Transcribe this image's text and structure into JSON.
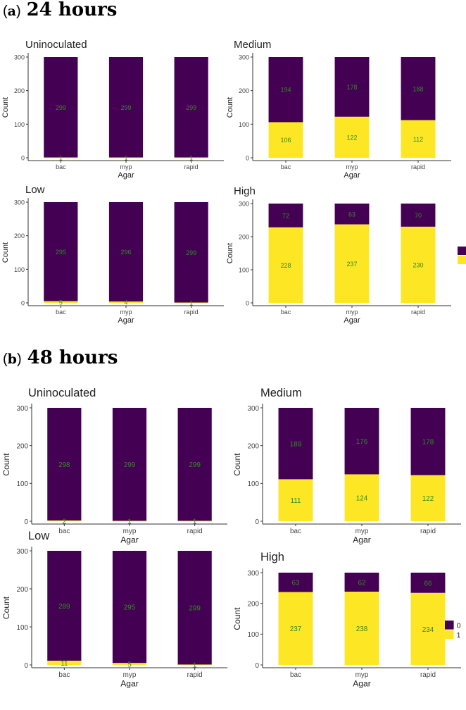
{
  "sections": [
    {
      "bracket_open": "(",
      "letter": "a",
      "bracket_close": ")",
      "title": "24 hours"
    },
    {
      "bracket_open": "(",
      "letter": "b",
      "bracket_close": ")",
      "title": "48 hours"
    }
  ],
  "legend": {
    "entries": [
      {
        "label": "0",
        "color": "#440154"
      },
      {
        "label": "1",
        "color": "#FDE725"
      }
    ]
  },
  "colors": {
    "zero": "#440154",
    "one": "#FDE725",
    "label": "#2E8B1E",
    "axis": "#333333"
  },
  "chart_data": [
    {
      "type": "bar",
      "section": "24 hours",
      "title": "Uninoculated",
      "xlabel": "Agar",
      "ylabel": "Count",
      "categories": [
        "bac",
        "myp",
        "rapid"
      ],
      "ylim": [
        0,
        300
      ],
      "yticks": [
        0,
        100,
        200,
        300
      ],
      "series": [
        {
          "name": "1",
          "values": [
            1,
            1,
            1
          ],
          "labels": [
            "1",
            "1",
            "1"
          ]
        },
        {
          "name": "0",
          "values": [
            299,
            299,
            299
          ],
          "labels": [
            "299",
            "299",
            "299"
          ]
        }
      ]
    },
    {
      "type": "bar",
      "section": "24 hours",
      "title": "Medium",
      "xlabel": "Agar",
      "ylabel": "Count",
      "categories": [
        "bac",
        "myp",
        "rapid"
      ],
      "ylim": [
        0,
        300
      ],
      "yticks": [
        0,
        100,
        200,
        300
      ],
      "series": [
        {
          "name": "1",
          "values": [
            106,
            122,
            112
          ],
          "labels": [
            "106",
            "122",
            "112"
          ]
        },
        {
          "name": "0",
          "values": [
            194,
            178,
            188
          ],
          "labels": [
            "194",
            "178",
            "188"
          ]
        }
      ]
    },
    {
      "type": "bar",
      "section": "24 hours",
      "title": "Low",
      "xlabel": "Agar",
      "ylabel": "Count",
      "categories": [
        "bac",
        "myp",
        "rapid"
      ],
      "ylim": [
        0,
        300
      ],
      "yticks": [
        0,
        100,
        200,
        300
      ],
      "series": [
        {
          "name": "1",
          "values": [
            5,
            4,
            1
          ],
          "labels": [
            "5",
            "4",
            "1"
          ]
        },
        {
          "name": "0",
          "values": [
            295,
            296,
            299
          ],
          "labels": [
            "295",
            "296",
            "299"
          ]
        }
      ]
    },
    {
      "type": "bar",
      "section": "24 hours",
      "title": "High",
      "xlabel": "Agar",
      "ylabel": "Count",
      "categories": [
        "bac",
        "myp",
        "rapid"
      ],
      "ylim": [
        0,
        300
      ],
      "yticks": [
        0,
        100,
        200,
        300
      ],
      "series": [
        {
          "name": "1",
          "values": [
            228,
            237,
            230
          ],
          "labels": [
            "228",
            "237",
            "230"
          ]
        },
        {
          "name": "0",
          "values": [
            72,
            63,
            70
          ],
          "labels": [
            "72",
            "63",
            "70"
          ]
        }
      ]
    },
    {
      "type": "bar",
      "section": "48 hours",
      "title": "Uninoculated",
      "xlabel": "Agar",
      "ylabel": "Count",
      "categories": [
        "bac",
        "myp",
        "rapid"
      ],
      "ylim": [
        0,
        300
      ],
      "yticks": [
        0,
        100,
        200,
        300
      ],
      "series": [
        {
          "name": "1",
          "values": [
            2,
            1,
            1
          ],
          "labels": [
            "2",
            "1",
            "1"
          ]
        },
        {
          "name": "0",
          "values": [
            298,
            299,
            299
          ],
          "labels": [
            "298",
            "299",
            "299"
          ]
        }
      ]
    },
    {
      "type": "bar",
      "section": "48 hours",
      "title": "Medium",
      "xlabel": "Agar",
      "ylabel": "Count",
      "categories": [
        "bac",
        "myp",
        "rapid"
      ],
      "ylim": [
        0,
        300
      ],
      "yticks": [
        0,
        100,
        200,
        300
      ],
      "series": [
        {
          "name": "1",
          "values": [
            111,
            124,
            122
          ],
          "labels": [
            "111",
            "124",
            "122"
          ]
        },
        {
          "name": "0",
          "values": [
            189,
            176,
            178
          ],
          "labels": [
            "189",
            "176",
            "178"
          ]
        }
      ]
    },
    {
      "type": "bar",
      "section": "48 hours",
      "title": "Low",
      "xlabel": "Agar",
      "ylabel": "Count",
      "categories": [
        "bac",
        "myp",
        "rapid"
      ],
      "ylim": [
        0,
        300
      ],
      "yticks": [
        0,
        100,
        200,
        300
      ],
      "series": [
        {
          "name": "1",
          "values": [
            11,
            5,
            1
          ],
          "labels": [
            "11",
            "5",
            "1"
          ]
        },
        {
          "name": "0",
          "values": [
            289,
            295,
            299
          ],
          "labels": [
            "289",
            "295",
            "299"
          ]
        }
      ]
    },
    {
      "type": "bar",
      "section": "48 hours",
      "title": "High",
      "xlabel": "Agar",
      "ylabel": "Count",
      "categories": [
        "bac",
        "myp",
        "rapid"
      ],
      "ylim": [
        0,
        300
      ],
      "yticks": [
        0,
        100,
        200,
        300
      ],
      "series": [
        {
          "name": "1",
          "values": [
            237,
            238,
            234
          ],
          "labels": [
            "237",
            "238",
            "234"
          ]
        },
        {
          "name": "0",
          "values": [
            63,
            62,
            66
          ],
          "labels": [
            "63",
            "62",
            "66"
          ]
        }
      ]
    }
  ]
}
